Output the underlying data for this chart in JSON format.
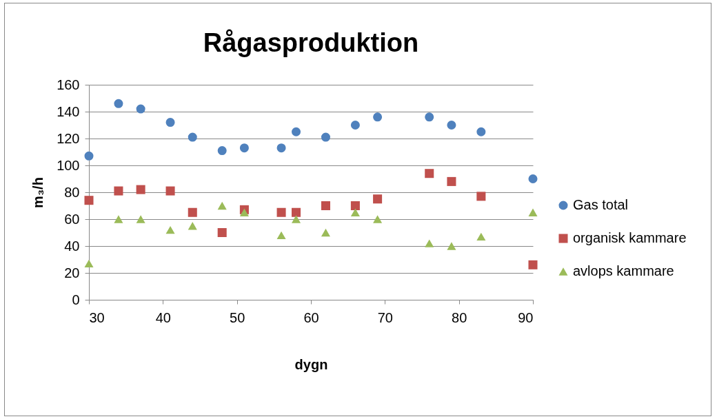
{
  "chart_data": {
    "type": "scatter",
    "title": "Rågasproduktion",
    "xlabel": "dygn",
    "ylabel": "m₃/h",
    "x": [
      30,
      34,
      37,
      41,
      44,
      48,
      51,
      56,
      58,
      62,
      66,
      69,
      76,
      79,
      83,
      90
    ],
    "series": [
      {
        "name": "Gas total",
        "color": "#4f81bd",
        "marker": "circle",
        "values": [
          107,
          146,
          142,
          132,
          121,
          111,
          113,
          113,
          125,
          121,
          130,
          136,
          136,
          130,
          125,
          90
        ]
      },
      {
        "name": "organisk kammare",
        "color": "#c0504d",
        "marker": "square",
        "values": [
          74,
          81,
          82,
          81,
          65,
          50,
          67,
          65,
          65,
          70,
          70,
          75,
          94,
          88,
          77,
          26
        ]
      },
      {
        "name": "avlops kammare",
        "color": "#9bbb59",
        "marker": "triangle",
        "values": [
          27,
          60,
          60,
          52,
          55,
          70,
          65,
          48,
          60,
          50,
          65,
          60,
          42,
          40,
          47,
          65
        ]
      }
    ],
    "xlim": [
      30,
      90
    ],
    "xticks": [
      30,
      40,
      50,
      60,
      70,
      80,
      90
    ],
    "ylim": [
      0,
      160
    ],
    "yticks": [
      0,
      20,
      40,
      60,
      80,
      100,
      120,
      140,
      160
    ],
    "grid": "y",
    "legend": "right"
  }
}
